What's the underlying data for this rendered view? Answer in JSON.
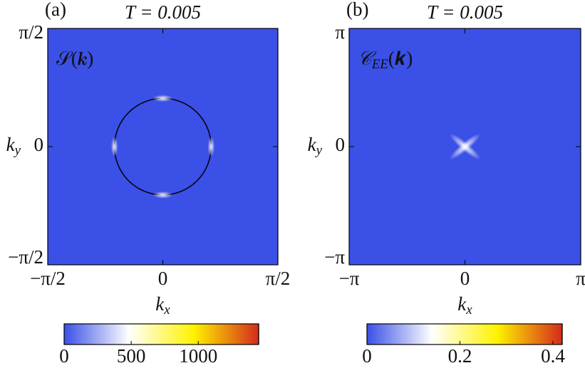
{
  "chart_data": [
    {
      "type": "heatmap",
      "panel": "(a)",
      "title": "T = 0.005",
      "label": "𝒮(𝒌)",
      "x_label": {
        "base": "k",
        "sub": "x"
      },
      "y_label": {
        "base": "k",
        "sub": "y"
      },
      "xlim": [
        -1.5708,
        1.5708
      ],
      "ylim": [
        -1.5708,
        1.5708
      ],
      "xticks": [
        {
          "value": -1.5708,
          "label": "−π/2"
        },
        0,
        {
          "value": 1.5708,
          "label": "π/2"
        }
      ],
      "yticks": [
        {
          "value": -1.5708,
          "label": "−π/2"
        },
        0,
        {
          "value": 1.5708,
          "label": "π/2"
        }
      ],
      "circle_radius": 0.66,
      "circle_color": "#000000",
      "colormap": [
        "#3a50e6",
        "#ffffff",
        "#fff200",
        "#d42a1c"
      ],
      "clim": [
        0,
        1450
      ],
      "cticks": [
        0,
        500,
        1000
      ]
    },
    {
      "type": "heatmap",
      "panel": "(b)",
      "title": "T = 0.005",
      "label": {
        "base": "𝒞",
        "sub": "EE",
        "arg": "(𝒌)"
      },
      "x_label": {
        "base": "k",
        "sub": "x"
      },
      "y_label": {
        "base": "k",
        "sub": "y"
      },
      "xlim": [
        -3.1416,
        3.1416
      ],
      "ylim": [
        -3.1416,
        3.1416
      ],
      "xticks": [
        {
          "value": -3.1416,
          "label": "−π"
        },
        0,
        {
          "value": 3.1416,
          "label": "π"
        }
      ],
      "yticks": [
        {
          "value": -3.1416,
          "label": "−π"
        },
        0,
        {
          "value": 3.1416,
          "label": "π"
        }
      ],
      "colormap": [
        "#3a50e6",
        "#ffffff",
        "#fff200",
        "#d42a1c"
      ],
      "clim": [
        0,
        0.42
      ],
      "cticks": [
        0,
        0.2,
        0.4
      ]
    }
  ]
}
